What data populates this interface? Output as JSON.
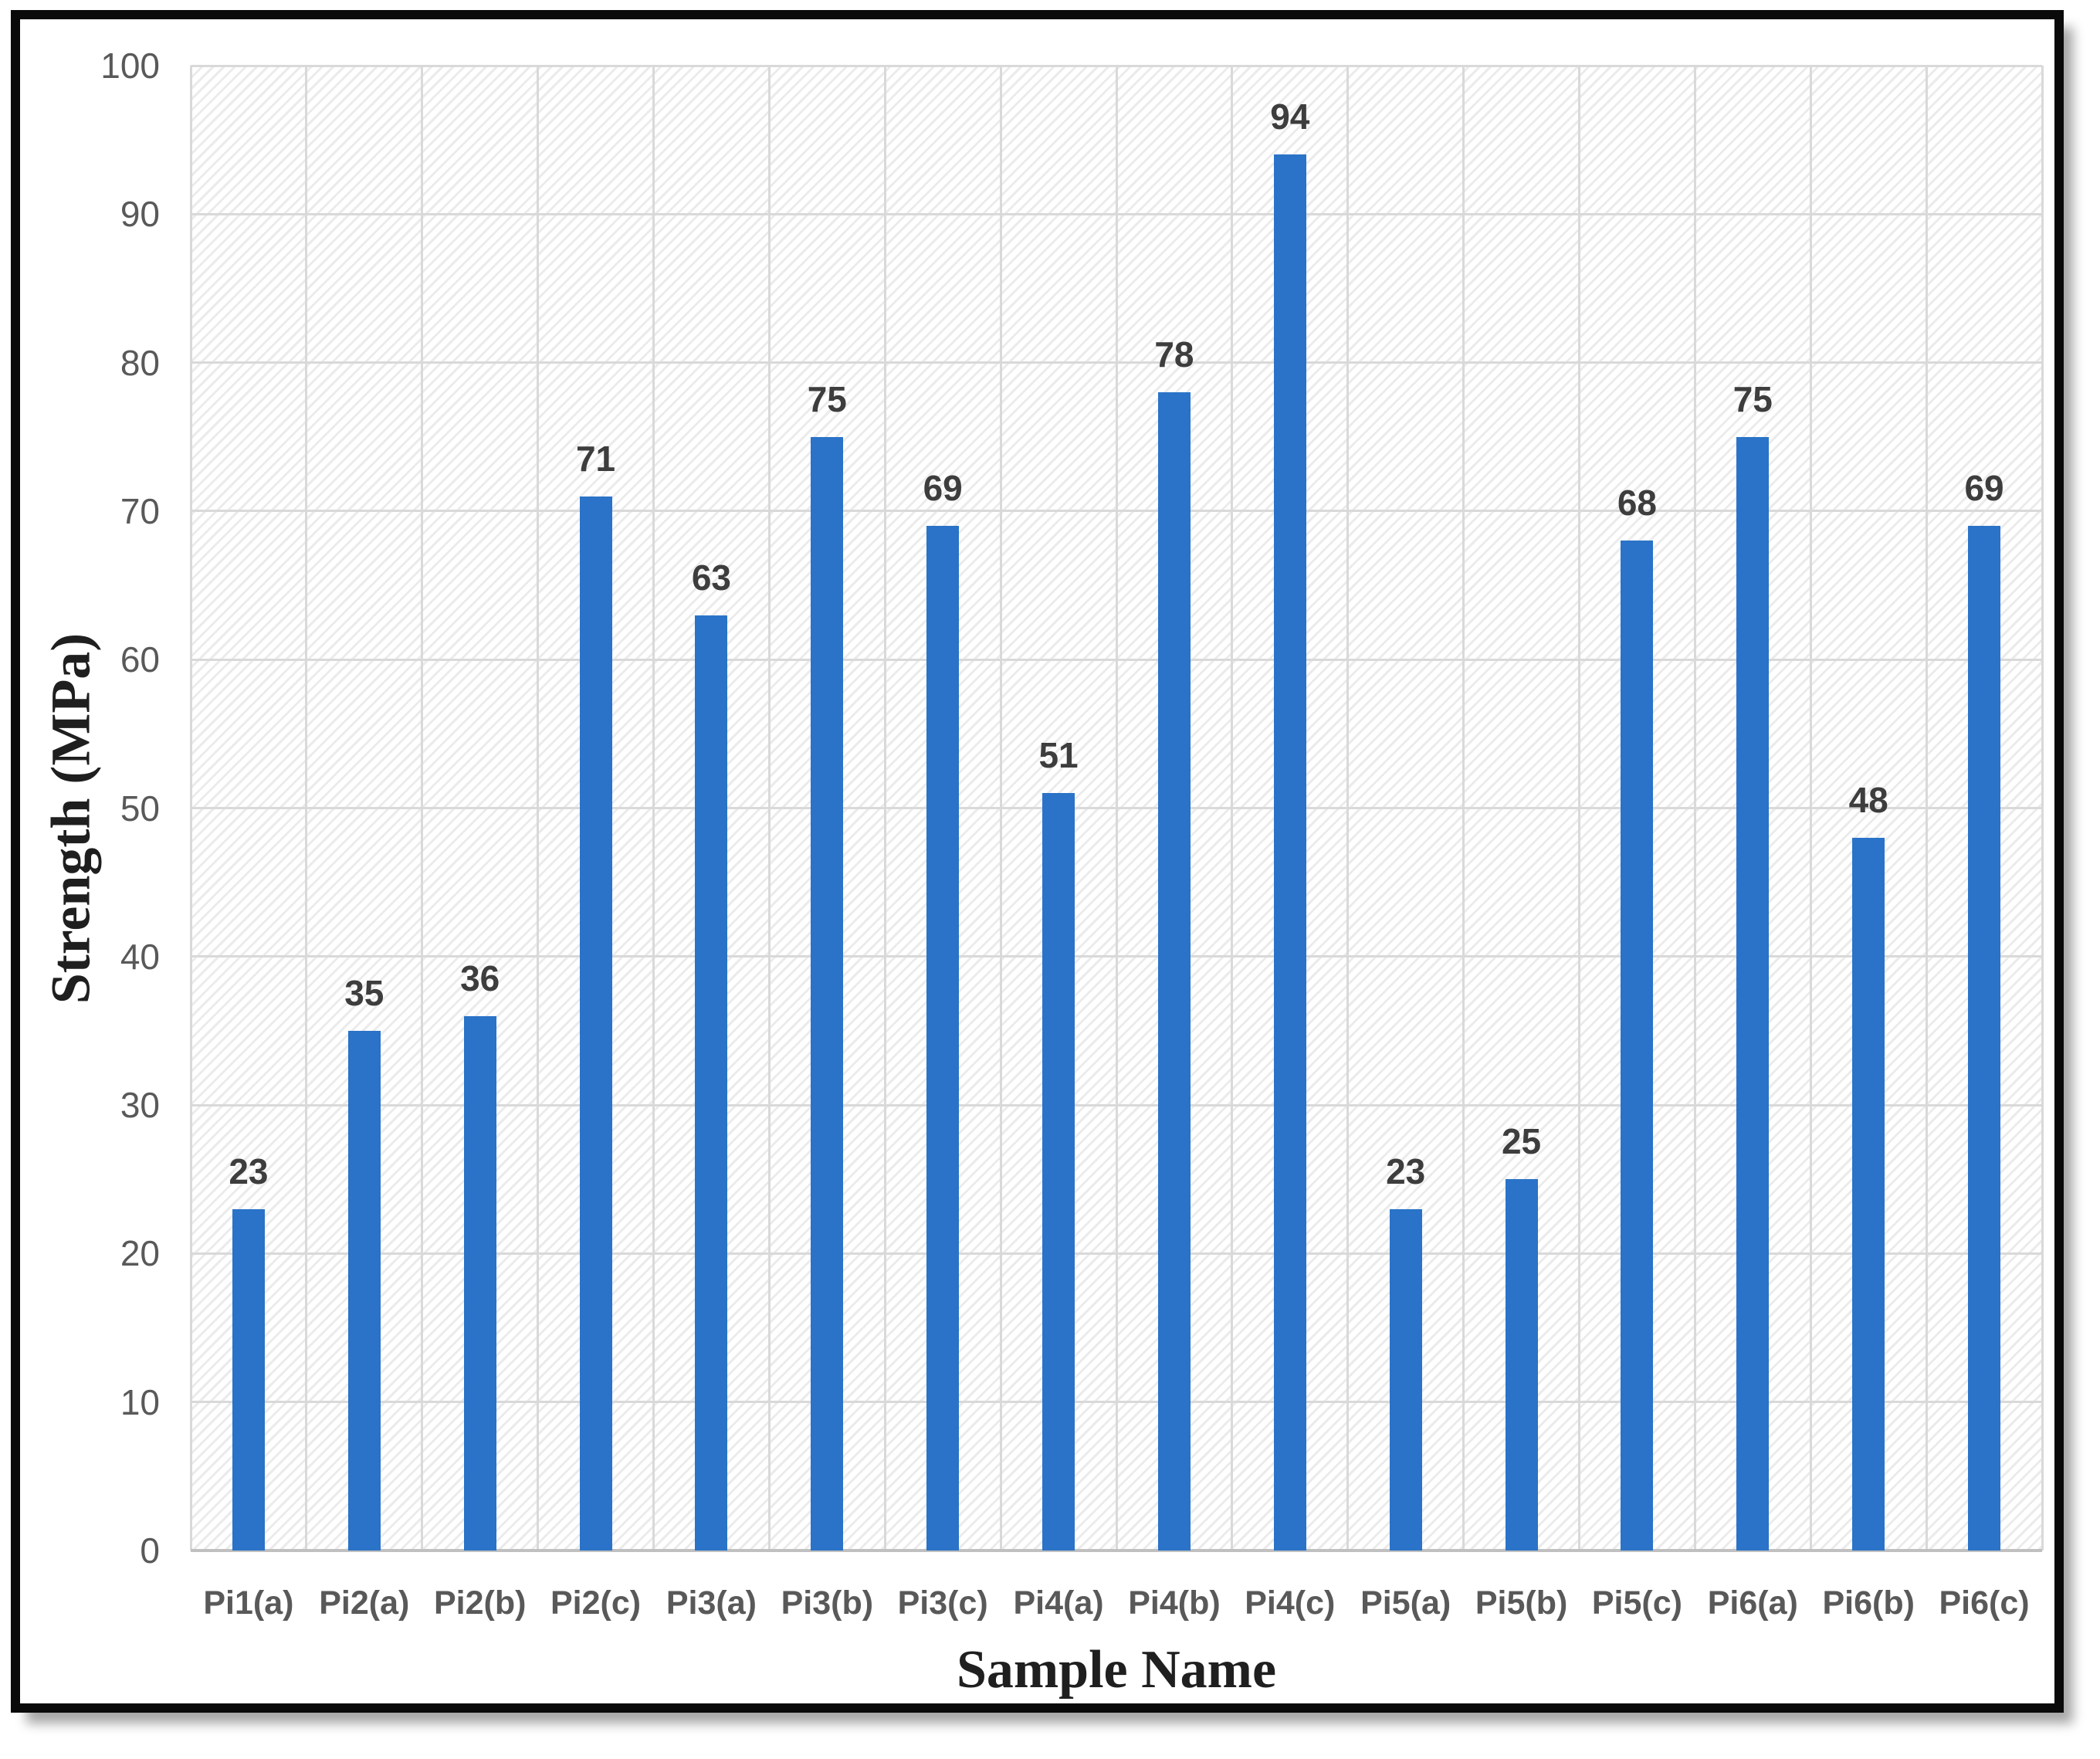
{
  "chart_data": {
    "type": "bar",
    "title": "",
    "xlabel": "Sample Name",
    "ylabel": "Strength (MPa)",
    "categories": [
      "Pi1(a)",
      "Pi2(a)",
      "Pi2(b)",
      "Pi2(c)",
      "Pi3(a)",
      "Pi3(b)",
      "Pi3(c)",
      "Pi4(a)",
      "Pi4(b)",
      "Pi4(c)",
      "Pi5(a)",
      "Pi5(b)",
      "Pi5(c)",
      "Pi6(a)",
      "Pi6(b)",
      "Pi6(c)"
    ],
    "values": [
      23,
      35,
      36,
      71,
      63,
      75,
      69,
      51,
      78,
      94,
      23,
      25,
      68,
      75,
      48,
      69
    ],
    "data_labels": [
      "23",
      "35",
      "36",
      "71",
      "63",
      "75",
      "69",
      "51",
      "78",
      "94",
      "23",
      "25",
      "68",
      "75",
      "48",
      "69"
    ],
    "ylim": [
      0,
      100
    ],
    "yticks": [
      0,
      10,
      20,
      30,
      40,
      50,
      60,
      70,
      80,
      90,
      100
    ],
    "grid": "both",
    "legend": "none",
    "plot_background": "diagonal-hatch",
    "colors": {
      "bar": "#2a73c8",
      "gridline": "#d9d9d9",
      "axis_line": "#c0c0c0",
      "tick_label": "#595959",
      "data_label": "#3d3d3d",
      "axis_title": "#1f1f1f",
      "hatch_line": "#ebebeb",
      "frame_border": "#0a0a0a"
    }
  }
}
